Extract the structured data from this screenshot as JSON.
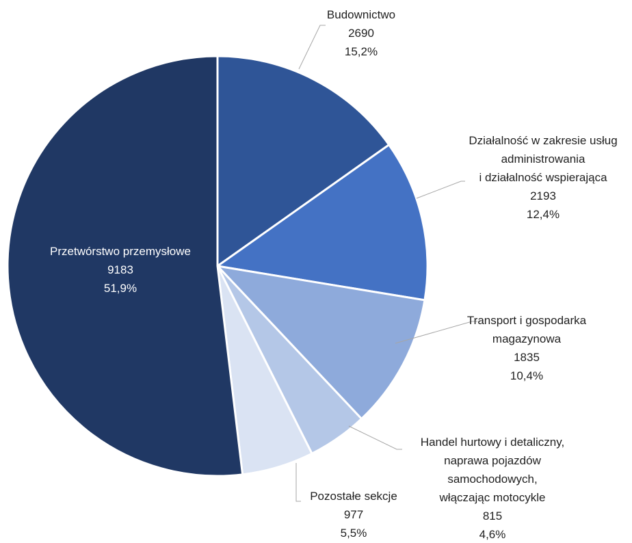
{
  "chart_data": {
    "type": "pie",
    "title": "",
    "start_angle_deg": 0,
    "direction": "clockwise",
    "slices": [
      {
        "name": "Budownictwo",
        "lines": [
          "Budownictwo"
        ],
        "value": 2690,
        "value_label": "2690",
        "percent_label": "15,2%",
        "color": "#2f5597"
      },
      {
        "name": "Działalność w zakresie usług administrowania i działalność wspierająca",
        "lines": [
          "Działalność w zakresie usług",
          "administrowania",
          "i działalność wspierająca"
        ],
        "value": 2193,
        "value_label": "2193",
        "percent_label": "12,4%",
        "color": "#4472c4"
      },
      {
        "name": "Transport i gospodarka magazynowa",
        "lines": [
          "Transport i gospodarka",
          "magazynowa"
        ],
        "value": 1835,
        "value_label": "1835",
        "percent_label": "10,4%",
        "color": "#8eaadb"
      },
      {
        "name": "Handel hurtowy i detaliczny, naprawa pojazdów samochodowych, włączając motocykle",
        "lines": [
          "Handel hurtowy i detaliczny,",
          "naprawa pojazdów",
          "samochodowych,",
          "włączając motocykle"
        ],
        "value": 815,
        "value_label": "815",
        "percent_label": "4,6%",
        "color": "#b4c7e7"
      },
      {
        "name": "Pozostałe sekcje",
        "lines": [
          "Pozostałe sekcje"
        ],
        "value": 977,
        "value_label": "977",
        "percent_label": "5,5%",
        "color": "#dae3f3"
      },
      {
        "name": "Przetwórstwo przemysłowe",
        "lines": [
          "Przetwórstwo przemysłowe"
        ],
        "value": 9183,
        "value_label": "9183",
        "percent_label": "51,9%",
        "color": "#203864"
      }
    ]
  }
}
